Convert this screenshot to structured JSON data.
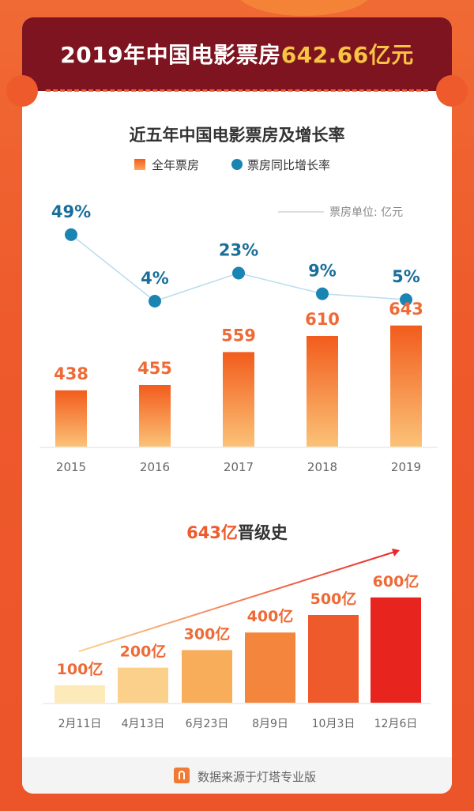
{
  "header": {
    "title_prefix": "2019年中国电影票房",
    "title_highlight": "642.66亿元"
  },
  "chart1": {
    "title": "近五年中国电影票房及增长率",
    "legend_bar": "全年票房",
    "legend_line": "票房同比增长率",
    "unit_note": "票房单位: 亿元"
  },
  "chart2": {
    "title_highlight": "643亿",
    "title_rest": "晋级史"
  },
  "footer": {
    "source": "数据来源于灯塔专业版"
  },
  "colors": {
    "header_bg": "#7e1420",
    "highlight": "#f7c443",
    "bar_top": "#f25c1c",
    "bar_bottom": "#fbc277",
    "line": "#1a84b3",
    "page_bg": "#ee5a2c"
  },
  "chart_data": [
    {
      "type": "bar",
      "title": "近五年中国电影票房及增长率",
      "categories": [
        "2015",
        "2016",
        "2017",
        "2018",
        "2019"
      ],
      "series": [
        {
          "name": "全年票房",
          "type": "bar",
          "values": [
            438,
            455,
            559,
            610,
            643
          ],
          "labels": [
            "438",
            "455",
            "559",
            "610",
            "643"
          ]
        },
        {
          "name": "票房同比增长率",
          "type": "line",
          "values": [
            49,
            4,
            23,
            9,
            5
          ],
          "labels": [
            "49%",
            "4%",
            "23%",
            "9%",
            "5%"
          ]
        }
      ],
      "legend": "top-center",
      "grid": false
    },
    {
      "type": "bar",
      "title": "643亿晋级史",
      "categories": [
        "2月11日",
        "4月13日",
        "6月23日",
        "8月9日",
        "10月3日",
        "12月6日"
      ],
      "values": [
        100,
        200,
        300,
        400,
        500,
        600
      ],
      "labels": [
        "100亿",
        "200亿",
        "300亿",
        "400亿",
        "500亿",
        "600亿"
      ],
      "grid": false
    }
  ]
}
